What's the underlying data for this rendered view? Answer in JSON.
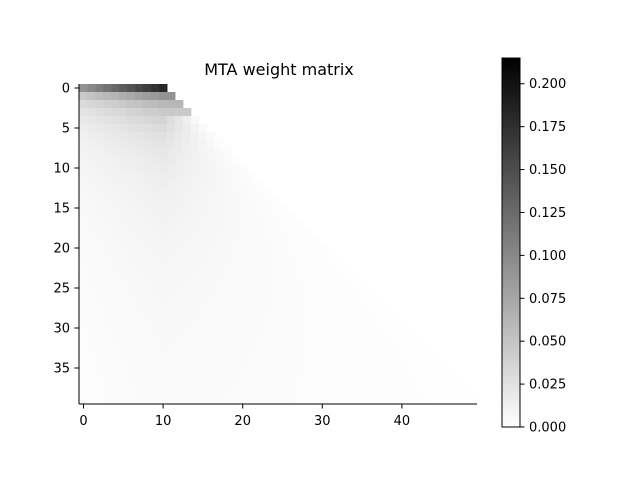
{
  "chart_data": [
    {
      "type": "heatmap",
      "title": "MTA weight matrix",
      "xlabel": "",
      "ylabel": "",
      "rows": 40,
      "cols": 50,
      "mask": "upper-right triangle blank: cell (r, c) is empty when c > r + 10",
      "xlim": [
        -0.5,
        49.5
      ],
      "ylim": [
        39.5,
        -0.5
      ],
      "x_ticks": [
        0,
        10,
        20,
        30,
        40
      ],
      "y_ticks": [
        0,
        5,
        10,
        15,
        20,
        25,
        30,
        35
      ],
      "x_tick_labels": [
        "0",
        "10",
        "20",
        "30",
        "40"
      ],
      "y_tick_labels": [
        "0",
        "5",
        "10",
        "15",
        "20",
        "25",
        "30",
        "35"
      ],
      "colormap": "Greys",
      "color_range": [
        0.0,
        0.215
      ],
      "grid": false,
      "weight_model": "weight(r, c) = ((2 - (c <= 9 ? 1 - c/10 : 0)) / 11) / (r + 1) * (1 - (c >= 10 && r >= 4 ? (min(c - 10, r) / r) * 0.85 : 0))",
      "colorbar": {
        "ticks": [
          0.0,
          0.025,
          0.05,
          0.075,
          0.1,
          0.125,
          0.15,
          0.175,
          0.2
        ],
        "tick_labels": [
          "0.000",
          "0.025",
          "0.050",
          "0.075",
          "0.100",
          "0.125",
          "0.150",
          "0.175",
          "0.200"
        ],
        "range": [
          0.0,
          0.215
        ],
        "placement": "right"
      }
    }
  ]
}
